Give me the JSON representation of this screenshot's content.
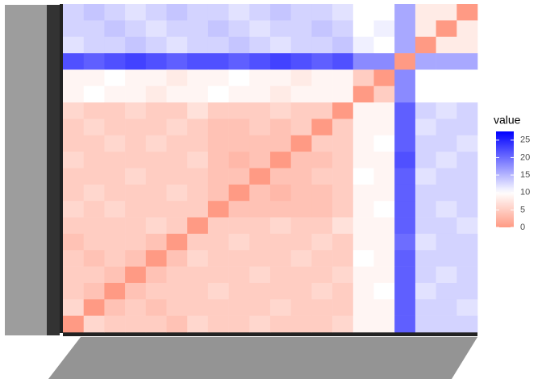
{
  "chart_data": {
    "type": "heatmap",
    "legend_title": "value",
    "zlim": [
      0,
      27.5
    ],
    "zticks": [
      0,
      5,
      10,
      15,
      20,
      25
    ],
    "colors": {
      "low": "#ff9a84",
      "mid": "#ffffff",
      "high": "#0000ff",
      "midpoint": 10
    },
    "values": [
      [
        13,
        14,
        13,
        12,
        13,
        14,
        13,
        13,
        12,
        13,
        14,
        13,
        13,
        12,
        10,
        10,
        16,
        8,
        8,
        0
      ],
      [
        13,
        13,
        14,
        13,
        12,
        13,
        13,
        14,
        13,
        12,
        13,
        13,
        14,
        13,
        10,
        11,
        16,
        8,
        0,
        8
      ],
      [
        12,
        13,
        13,
        14,
        13,
        12,
        13,
        13,
        14,
        13,
        12,
        13,
        13,
        14,
        11,
        10,
        16,
        0,
        8,
        8
      ],
      [
        22,
        21,
        22,
        23,
        22,
        21,
        22,
        22,
        21,
        22,
        23,
        22,
        21,
        22,
        18,
        18,
        0,
        16,
        16,
        16
      ],
      [
        9,
        9,
        10,
        9,
        9,
        8,
        9,
        9,
        10,
        9,
        9,
        8,
        9,
        9,
        5,
        0,
        18,
        10,
        10,
        10
      ],
      [
        9,
        10,
        9,
        9,
        8,
        9,
        9,
        10,
        9,
        9,
        8,
        9,
        9,
        9,
        0,
        5,
        18,
        10,
        10,
        10
      ],
      [
        6,
        5,
        5,
        6,
        5,
        5,
        7,
        5,
        5,
        5,
        6,
        5,
        5,
        0,
        9,
        9,
        21,
        13,
        12,
        13
      ],
      [
        5,
        6,
        5,
        5,
        5,
        6,
        5,
        4,
        4,
        5,
        4,
        5,
        0,
        5,
        9,
        9,
        21,
        12,
        13,
        13
      ],
      [
        5,
        5,
        6,
        5,
        6,
        5,
        5,
        4,
        4,
        4,
        4,
        0,
        5,
        5,
        9,
        10,
        21,
        13,
        13,
        12
      ],
      [
        6,
        5,
        5,
        5,
        5,
        5,
        6,
        4,
        3,
        4,
        0,
        4,
        4,
        5,
        9,
        9,
        22,
        13,
        12,
        13
      ],
      [
        5,
        5,
        5,
        6,
        5,
        5,
        5,
        4,
        4,
        0,
        4,
        4,
        5,
        5,
        10,
        9,
        21,
        12,
        13,
        13
      ],
      [
        5,
        6,
        5,
        5,
        5,
        6,
        5,
        4,
        0,
        4,
        3,
        4,
        4,
        5,
        9,
        9,
        21,
        13,
        13,
        13
      ],
      [
        6,
        5,
        6,
        5,
        5,
        5,
        5,
        0,
        4,
        4,
        4,
        4,
        4,
        5,
        9,
        10,
        21,
        13,
        12,
        13
      ],
      [
        5,
        5,
        5,
        5,
        6,
        5,
        0,
        5,
        5,
        5,
        6,
        5,
        5,
        7,
        9,
        9,
        21,
        13,
        13,
        12
      ],
      [
        4,
        5,
        5,
        5,
        4,
        0,
        5,
        5,
        6,
        5,
        5,
        5,
        6,
        5,
        9,
        9,
        20,
        12,
        13,
        13
      ],
      [
        5,
        4,
        5,
        4,
        0,
        4,
        6,
        5,
        5,
        5,
        5,
        6,
        5,
        5,
        10,
        9,
        21,
        13,
        13,
        13
      ],
      [
        5,
        5,
        4,
        0,
        4,
        5,
        5,
        5,
        5,
        6,
        5,
        5,
        5,
        6,
        9,
        9,
        21,
        13,
        12,
        13
      ],
      [
        5,
        4,
        0,
        4,
        5,
        5,
        5,
        6,
        5,
        5,
        5,
        5,
        6,
        5,
        9,
        10,
        21,
        12,
        13,
        13
      ],
      [
        6,
        0,
        4,
        5,
        4,
        5,
        5,
        5,
        5,
        5,
        6,
        5,
        5,
        5,
        9,
        9,
        21,
        13,
        13,
        12
      ],
      [
        0,
        6,
        5,
        5,
        5,
        4,
        6,
        5,
        5,
        6,
        5,
        5,
        5,
        6,
        9,
        9,
        21,
        13,
        13,
        13
      ]
    ]
  }
}
